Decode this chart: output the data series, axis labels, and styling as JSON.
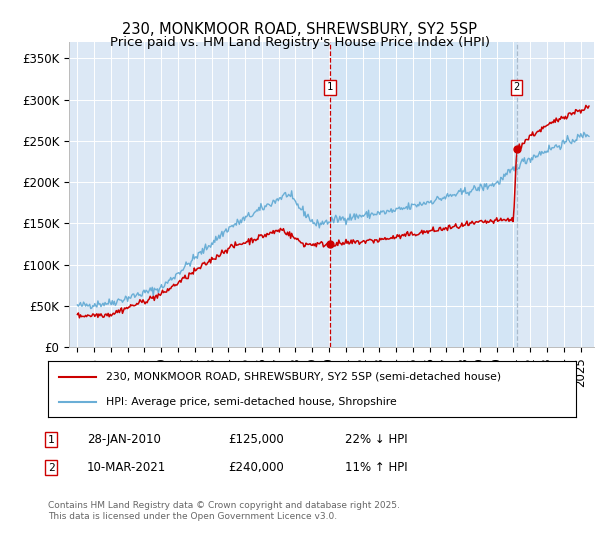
{
  "title": "230, MONKMOOR ROAD, SHREWSBURY, SY2 5SP",
  "subtitle": "Price paid vs. HM Land Registry's House Price Index (HPI)",
  "footer": "Contains HM Land Registry data © Crown copyright and database right 2025.\nThis data is licensed under the Open Government Licence v3.0.",
  "legend_property": "230, MONKMOOR ROAD, SHREWSBURY, SY2 5SP (semi-detached house)",
  "legend_hpi": "HPI: Average price, semi-detached house, Shropshire",
  "annotation1": {
    "label": "1",
    "date": "28-JAN-2010",
    "price": "£125,000",
    "hpi_text": "22% ↓ HPI",
    "x_year": 2010.07
  },
  "annotation2": {
    "label": "2",
    "date": "10-MAR-2021",
    "price": "£240,000",
    "hpi_text": "11% ↑ HPI",
    "x_year": 2021.19
  },
  "y_ticks": [
    0,
    50000,
    100000,
    150000,
    200000,
    250000,
    300000,
    350000
  ],
  "y_labels": [
    "£0",
    "£50K",
    "£100K",
    "£150K",
    "£200K",
    "£250K",
    "£300K",
    "£350K"
  ],
  "ylim": [
    0,
    370000
  ],
  "xlim_start": 1994.5,
  "xlim_end": 2025.8,
  "background_color": "#dce8f5",
  "hpi_color": "#6aaed6",
  "property_color": "#cc0000",
  "vline1_color": "#cc0000",
  "vline2_color": "#aabbcc",
  "dot_color": "#cc0000",
  "shade_color": "#d0e4f5",
  "title_fontsize": 10.5,
  "tick_fontsize": 8.5,
  "ann1_price": 125000,
  "ann2_price": 240000
}
